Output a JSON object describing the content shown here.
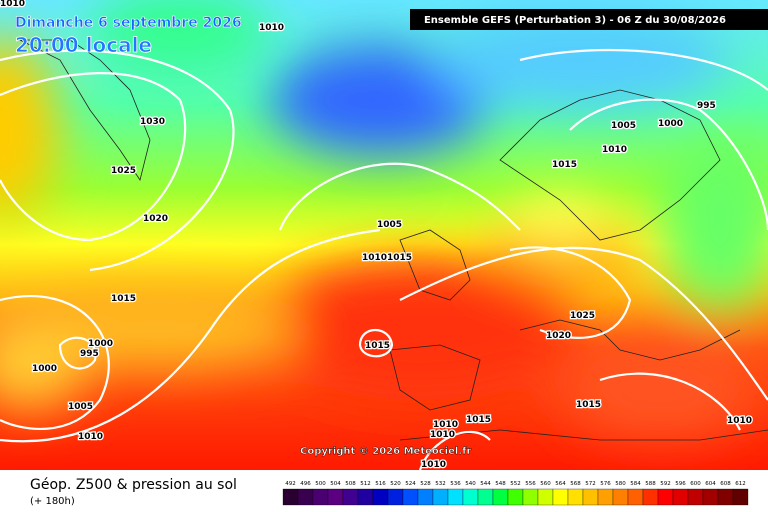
{
  "header": {
    "date": "Dimanche 6 septembre 2026",
    "time": "20:00 locale",
    "model": "Ensemble GEFS  (Perturbation 3)  -  06 Z du 30/08/2026"
  },
  "copyright": "Copyright © 2026 Meteociel.fr",
  "footer": {
    "title": "Géop. Z500 & pression au sol",
    "lead": "(+ 180h)"
  },
  "isobar_labels": [
    "1010",
    "1010",
    "1030",
    "1025",
    "1020",
    "1005",
    "1010",
    "1015",
    "1015",
    "1000",
    "995",
    "1000",
    "1005",
    "1010",
    "1015",
    "1015",
    "1005",
    "1000",
    "1010",
    "995",
    "1025",
    "1020",
    "1015",
    "1010",
    "1015",
    "1010",
    "1010",
    "1010"
  ],
  "scale": [
    492,
    496,
    500,
    504,
    508,
    512,
    516,
    520,
    524,
    528,
    532,
    536,
    540,
    544,
    548,
    552,
    556,
    560,
    564,
    568,
    572,
    576,
    580,
    584,
    588,
    592,
    596,
    600,
    604,
    608,
    612
  ]
}
